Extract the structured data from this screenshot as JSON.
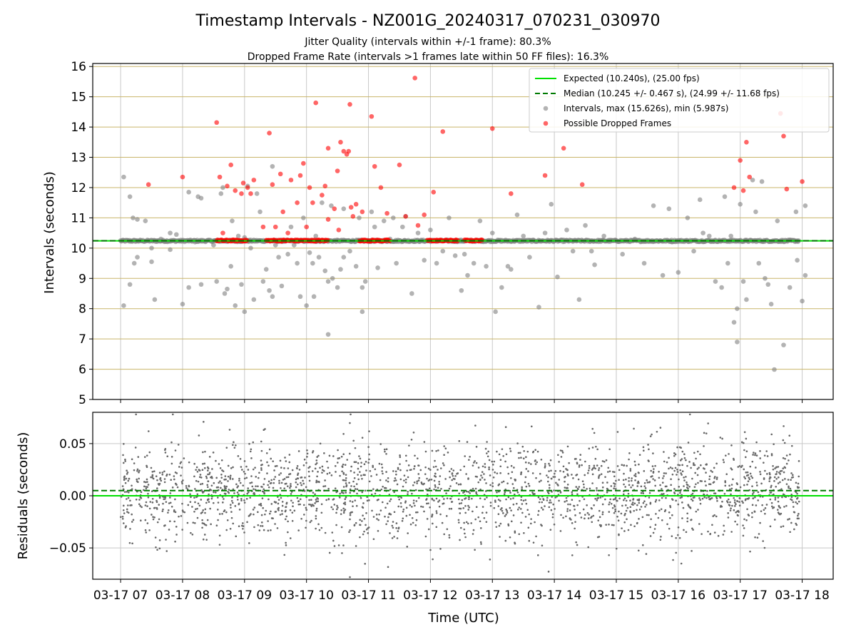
{
  "figure": {
    "title": "Timestamp Intervals - NZ001G_20240317_070231_030970",
    "subtitle_1": "Jitter Quality (intervals within +/-1 frame): 80.3%",
    "subtitle_2": "Dropped Frame Rate (intervals >1 frames late within 50 FF files): 16.3%",
    "xlabel": "Time (UTC)"
  },
  "colors": {
    "expected": "#00e000",
    "median": "#007a00",
    "interval_points": "#808080",
    "dropped_points": "#ff0000",
    "hgrid_top": "#c9b56a",
    "grid": "#c8c8c8",
    "residual_points": "#666666"
  },
  "chart_data": [
    {
      "type": "scatter",
      "ylabel": "Intervals (seconds)",
      "ylim": [
        5,
        16.1
      ],
      "xlim": [
        6.55,
        18.5
      ],
      "y_ticks": [
        5,
        6,
        7,
        8,
        9,
        10,
        11,
        12,
        13,
        14,
        15,
        16
      ],
      "x_axis_unit": "hours UTC on 2024-03-17",
      "x_ticks": [
        7,
        8,
        9,
        10,
        11,
        12,
        13,
        14,
        15,
        16,
        17,
        18
      ],
      "x_tick_labels": [
        "03-17 07",
        "03-17 08",
        "03-17 09",
        "03-17 10",
        "03-17 11",
        "03-17 12",
        "03-17 13",
        "03-17 14",
        "03-17 15",
        "03-17 16",
        "03-17 17",
        "03-17 18"
      ],
      "grid": true,
      "reference_lines": [
        {
          "name": "Expected (10.240s), (25.00 fps)",
          "y": 10.24,
          "style": "solid"
        },
        {
          "name": "Median (10.245 +/- 0.467 s), (24.99 +/- 11.68 fps)",
          "y": 10.245,
          "style": "dashed"
        }
      ],
      "legend": {
        "placement": "top-right",
        "entries": [
          {
            "label": "Expected (10.240s), (25.00 fps)",
            "kind": "line-solid"
          },
          {
            "label": "Median (10.245 +/- 0.467 s), (24.99 +/- 11.68 fps)",
            "kind": "line-dashed"
          },
          {
            "label": "Intervals, max (15.626s), min (5.987s)",
            "kind": "marker-grey"
          },
          {
            "label": "Possible Dropped Frames",
            "kind": "marker-red"
          }
        ]
      },
      "series": [
        {
          "name": "Intervals, max (15.626s), min (5.987s)",
          "points": [
            [
              7.05,
              12.35
            ],
            [
              7.05,
              8.1
            ],
            [
              7.15,
              11.7
            ],
            [
              7.15,
              8.8
            ],
            [
              7.2,
              11.0
            ],
            [
              7.22,
              9.5
            ],
            [
              7.27,
              10.95
            ],
            [
              7.27,
              9.7
            ],
            [
              7.4,
              10.9
            ],
            [
              7.5,
              9.55
            ],
            [
              7.5,
              10.0
            ],
            [
              7.55,
              8.3
            ],
            [
              7.65,
              10.3
            ],
            [
              7.8,
              9.95
            ],
            [
              7.8,
              10.5
            ],
            [
              7.9,
              10.45
            ],
            [
              8.0,
              8.15
            ],
            [
              8.1,
              11.85
            ],
            [
              8.1,
              8.7
            ],
            [
              8.2,
              10.2
            ],
            [
              8.25,
              11.7
            ],
            [
              8.3,
              11.65
            ],
            [
              8.3,
              8.8
            ],
            [
              8.5,
              10.1
            ],
            [
              8.55,
              8.9
            ],
            [
              8.62,
              11.8
            ],
            [
              8.65,
              12.0
            ],
            [
              8.68,
              8.5
            ],
            [
              8.72,
              8.65
            ],
            [
              8.78,
              9.4
            ],
            [
              8.8,
              10.9
            ],
            [
              8.85,
              8.1
            ],
            [
              8.9,
              10.4
            ],
            [
              8.95,
              8.8
            ],
            [
              9.0,
              10.35
            ],
            [
              9.05,
              12.05
            ],
            [
              9.1,
              10.0
            ],
            [
              9.15,
              8.3
            ],
            [
              9.25,
              11.2
            ],
            [
              9.3,
              8.9
            ],
            [
              9.35,
              9.3
            ],
            [
              9.4,
              8.6
            ],
            [
              9.45,
              12.7
            ],
            [
              9.45,
              8.4
            ],
            [
              9.5,
              10.1
            ],
            [
              9.55,
              9.7
            ],
            [
              9.6,
              8.75
            ],
            [
              9.7,
              9.8
            ],
            [
              9.75,
              10.7
            ],
            [
              9.85,
              9.5
            ],
            [
              9.9,
              8.4
            ],
            [
              9.95,
              11.0
            ],
            [
              10.0,
              8.1
            ],
            [
              10.05,
              9.85
            ],
            [
              10.1,
              9.5
            ],
            [
              10.12,
              8.4
            ],
            [
              10.15,
              10.4
            ],
            [
              10.2,
              9.7
            ],
            [
              10.25,
              11.5
            ],
            [
              10.3,
              9.25
            ],
            [
              10.35,
              8.9
            ],
            [
              10.4,
              11.4
            ],
            [
              10.42,
              9.0
            ],
            [
              10.5,
              8.7
            ],
            [
              10.55,
              9.3
            ],
            [
              10.6,
              11.3
            ],
            [
              10.7,
              9.9
            ],
            [
              10.8,
              9.4
            ],
            [
              10.85,
              11.0
            ],
            [
              10.9,
              8.7
            ],
            [
              10.95,
              8.9
            ],
            [
              11.05,
              11.2
            ],
            [
              11.1,
              10.7
            ],
            [
              11.15,
              9.35
            ],
            [
              11.25,
              10.9
            ],
            [
              11.35,
              10.3
            ],
            [
              11.45,
              9.5
            ],
            [
              11.55,
              10.7
            ],
            [
              11.6,
              11.05
            ],
            [
              11.7,
              8.5
            ],
            [
              11.8,
              10.5
            ],
            [
              11.9,
              9.6
            ],
            [
              12.0,
              10.6
            ],
            [
              12.1,
              9.5
            ],
            [
              12.2,
              9.9
            ],
            [
              12.3,
              11.0
            ],
            [
              12.4,
              9.75
            ],
            [
              12.5,
              8.6
            ],
            [
              12.55,
              9.8
            ],
            [
              12.7,
              9.5
            ],
            [
              12.8,
              10.9
            ],
            [
              12.9,
              9.4
            ],
            [
              13.0,
              10.5
            ],
            [
              13.05,
              7.9
            ],
            [
              13.15,
              8.7
            ],
            [
              13.25,
              9.4
            ],
            [
              13.3,
              9.3
            ],
            [
              13.4,
              11.1
            ],
            [
              13.5,
              10.4
            ],
            [
              13.6,
              9.7
            ],
            [
              13.75,
              8.05
            ],
            [
              13.85,
              10.5
            ],
            [
              13.95,
              11.45
            ],
            [
              14.05,
              9.05
            ],
            [
              14.2,
              10.6
            ],
            [
              14.3,
              9.9
            ],
            [
              14.4,
              8.3
            ],
            [
              14.5,
              10.75
            ],
            [
              14.6,
              9.9
            ],
            [
              14.65,
              9.45
            ],
            [
              14.8,
              10.4
            ],
            [
              15.0,
              10.25
            ],
            [
              15.1,
              9.8
            ],
            [
              15.3,
              10.3
            ],
            [
              15.45,
              9.5
            ],
            [
              15.6,
              11.4
            ],
            [
              15.75,
              9.1
            ],
            [
              15.85,
              11.3
            ],
            [
              16.0,
              9.2
            ],
            [
              16.15,
              11.0
            ],
            [
              16.25,
              9.9
            ],
            [
              16.35,
              11.6
            ],
            [
              16.5,
              10.4
            ],
            [
              16.6,
              8.9
            ],
            [
              16.7,
              8.7
            ],
            [
              16.75,
              11.7
            ],
            [
              16.8,
              9.5
            ],
            [
              16.85,
              10.4
            ],
            [
              16.9,
              7.55
            ],
            [
              16.95,
              8.0
            ],
            [
              17.0,
              11.45
            ],
            [
              17.05,
              8.9
            ],
            [
              17.1,
              8.3
            ],
            [
              17.2,
              12.25
            ],
            [
              17.25,
              11.2
            ],
            [
              17.3,
              9.5
            ],
            [
              17.35,
              12.2
            ],
            [
              17.4,
              9.0
            ],
            [
              17.45,
              8.8
            ],
            [
              17.5,
              8.15
            ],
            [
              17.55,
              5.99
            ],
            [
              17.6,
              10.9
            ],
            [
              17.7,
              6.8
            ],
            [
              17.8,
              8.7
            ],
            [
              17.9,
              11.2
            ],
            [
              17.92,
              9.6
            ],
            [
              18.0,
              8.25
            ],
            [
              18.05,
              11.4
            ],
            [
              18.05,
              9.1
            ],
            [
              16.95,
              6.9
            ],
            [
              10.35,
              7.15
            ],
            [
              10.9,
              7.9
            ],
            [
              9.0,
              7.9
            ],
            [
              9.2,
              11.8
            ],
            [
              9.8,
              10.1
            ],
            [
              10.6,
              9.7
            ],
            [
              11.4,
              11.0
            ],
            [
              12.6,
              9.1
            ],
            [
              15.9,
              10.2
            ],
            [
              16.4,
              10.5
            ]
          ]
        },
        {
          "name": "Possible Dropped Frames",
          "points": [
            [
              7.45,
              12.1
            ],
            [
              8.0,
              12.35
            ],
            [
              8.55,
              14.15
            ],
            [
              8.6,
              12.35
            ],
            [
              8.65,
              10.5
            ],
            [
              8.72,
              12.05
            ],
            [
              8.78,
              12.75
            ],
            [
              8.85,
              11.9
            ],
            [
              8.95,
              11.8
            ],
            [
              8.98,
              12.15
            ],
            [
              9.05,
              12.0
            ],
            [
              9.1,
              11.8
            ],
            [
              9.15,
              12.25
            ],
            [
              9.3,
              10.7
            ],
            [
              9.4,
              13.8
            ],
            [
              9.45,
              12.1
            ],
            [
              9.5,
              10.7
            ],
            [
              9.58,
              12.45
            ],
            [
              9.62,
              11.2
            ],
            [
              9.7,
              10.5
            ],
            [
              9.75,
              12.25
            ],
            [
              9.85,
              11.5
            ],
            [
              9.9,
              12.4
            ],
            [
              9.95,
              12.8
            ],
            [
              10.0,
              10.7
            ],
            [
              10.05,
              12.0
            ],
            [
              10.1,
              11.5
            ],
            [
              10.15,
              14.8
            ],
            [
              10.25,
              11.75
            ],
            [
              10.3,
              12.05
            ],
            [
              10.35,
              10.95
            ],
            [
              10.35,
              13.3
            ],
            [
              10.45,
              11.3
            ],
            [
              10.5,
              12.55
            ],
            [
              10.52,
              10.6
            ],
            [
              10.55,
              13.5
            ],
            [
              10.6,
              13.2
            ],
            [
              10.65,
              13.1
            ],
            [
              10.68,
              13.2
            ],
            [
              10.7,
              14.75
            ],
            [
              10.72,
              11.35
            ],
            [
              10.75,
              11.05
            ],
            [
              10.8,
              11.45
            ],
            [
              10.9,
              11.2
            ],
            [
              11.05,
              14.35
            ],
            [
              11.1,
              12.7
            ],
            [
              11.2,
              12.0
            ],
            [
              11.3,
              11.15
            ],
            [
              11.5,
              12.75
            ],
            [
              11.6,
              11.05
            ],
            [
              11.75,
              15.62
            ],
            [
              11.8,
              10.75
            ],
            [
              11.9,
              11.1
            ],
            [
              12.05,
              11.85
            ],
            [
              12.2,
              13.85
            ],
            [
              12.35,
              10.25
            ],
            [
              13.0,
              13.95
            ],
            [
              13.3,
              11.8
            ],
            [
              13.85,
              12.4
            ],
            [
              14.15,
              13.3
            ],
            [
              14.45,
              12.1
            ],
            [
              16.9,
              12.0
            ],
            [
              17.0,
              12.9
            ],
            [
              17.05,
              11.9
            ],
            [
              17.1,
              13.5
            ],
            [
              17.15,
              12.35
            ],
            [
              17.65,
              14.45
            ],
            [
              17.7,
              13.7
            ],
            [
              17.75,
              11.95
            ],
            [
              18.0,
              12.2
            ]
          ]
        },
        {
          "name": "Possible Dropped Frames (near expected)",
          "x_ranges": [
            [
              8.55,
              9.05
            ],
            [
              9.35,
              10.35
            ],
            [
              10.85,
              11.35
            ],
            [
              11.95,
              12.45
            ],
            [
              12.55,
              12.85
            ]
          ],
          "y": 10.25
        }
      ],
      "interval_band": {
        "x_start": 7.0,
        "x_end": 17.95,
        "y": 10.24
      }
    },
    {
      "type": "scatter",
      "ylabel": "Residuals (seconds)",
      "ylim": [
        -0.08,
        0.08
      ],
      "xlim": [
        6.55,
        18.5
      ],
      "y_ticks": [
        -0.05,
        0.0,
        0.05
      ],
      "y_tick_labels": [
        "−0.05",
        "0.00",
        "0.05"
      ],
      "x_axis_unit": "hours UTC on 2024-03-17",
      "x_ticks": [
        7,
        8,
        9,
        10,
        11,
        12,
        13,
        14,
        15,
        16,
        17,
        18
      ],
      "grid": true,
      "reference_lines": [
        {
          "y": 0.0,
          "style": "solid"
        },
        {
          "y": 0.005,
          "style": "dashed"
        }
      ],
      "residual_spread": {
        "x_start": 7.0,
        "x_end": 17.95,
        "range": [
          -0.05,
          0.05
        ],
        "approx_points": 2400
      }
    }
  ]
}
